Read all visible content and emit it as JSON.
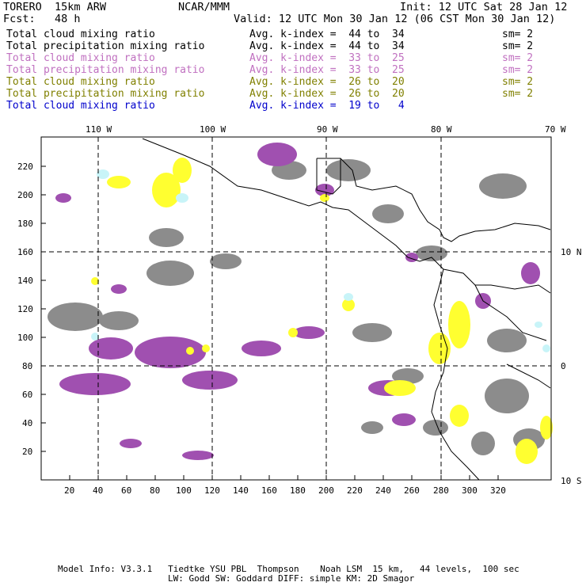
{
  "header": {
    "model": "TORERO  15km ARW",
    "org": "NCAR/MMM",
    "init": "Init: 12 UTC Sat 28 Jan 12",
    "fcst": "Fcst:   48 h",
    "valid": "Valid: 12 UTC Mon 30 Jan 12 (06 CST Mon 30 Jan 12)"
  },
  "legend": [
    {
      "field": "Total cloud mixing ratio",
      "index": "Avg. k-index =  44 to  34",
      "sm": "sm= 2",
      "color": "#000000"
    },
    {
      "field": "Total precipitation mixing ratio",
      "index": "Avg. k-index =  44 to  34",
      "sm": "sm= 2",
      "color": "#000000"
    },
    {
      "field": "Total cloud mixing ratio",
      "index": "Avg. k-index =  33 to  25",
      "sm": "sm= 2",
      "color": "#c070c0"
    },
    {
      "field": "Total precipitation mixing ratio",
      "index": "Avg. k-index =  33 to  25",
      "sm": "sm= 2",
      "color": "#c070c0"
    },
    {
      "field": "Total cloud mixing ratio",
      "index": "Avg. k-index =  26 to  20",
      "sm": "sm= 2",
      "color": "#808000"
    },
    {
      "field": "Total precipitation mixing ratio",
      "index": "Avg. k-index =  26 to  20",
      "sm": "sm= 2",
      "color": "#808000"
    },
    {
      "field": "Total cloud mixing ratio",
      "index": "Avg. k-index =  19 to   4",
      "sm": "",
      "color": "#0000cc"
    }
  ],
  "top_lon_labels": [
    "110 W",
    "100 W",
    "90 W",
    "80 W",
    "70 W"
  ],
  "right_lat_labels": [
    "10 N",
    "0",
    "10 S"
  ],
  "left_y_ticks": [
    "20",
    "40",
    "60",
    "80",
    "100",
    "120",
    "140",
    "160",
    "180",
    "200",
    "220"
  ],
  "bottom_x_ticks": [
    "20",
    "40",
    "60",
    "80",
    "100",
    "120",
    "140",
    "160",
    "180",
    "200",
    "220",
    "240",
    "260",
    "280",
    "300",
    "320"
  ],
  "footer": {
    "line1": "Model Info: V3.3.1   Tiedtke YSU PBL  Thompson    Noah LSM  15 km,   44 levels,  100 sec",
    "line2": "LW: Godd SW: Goddard DIFF: simple KM: 2D Smagor"
  },
  "colors": {
    "gray": "#888888",
    "purple": "#a050b0",
    "yellow": "#ffff30",
    "cyan": "#c8f4f8"
  }
}
